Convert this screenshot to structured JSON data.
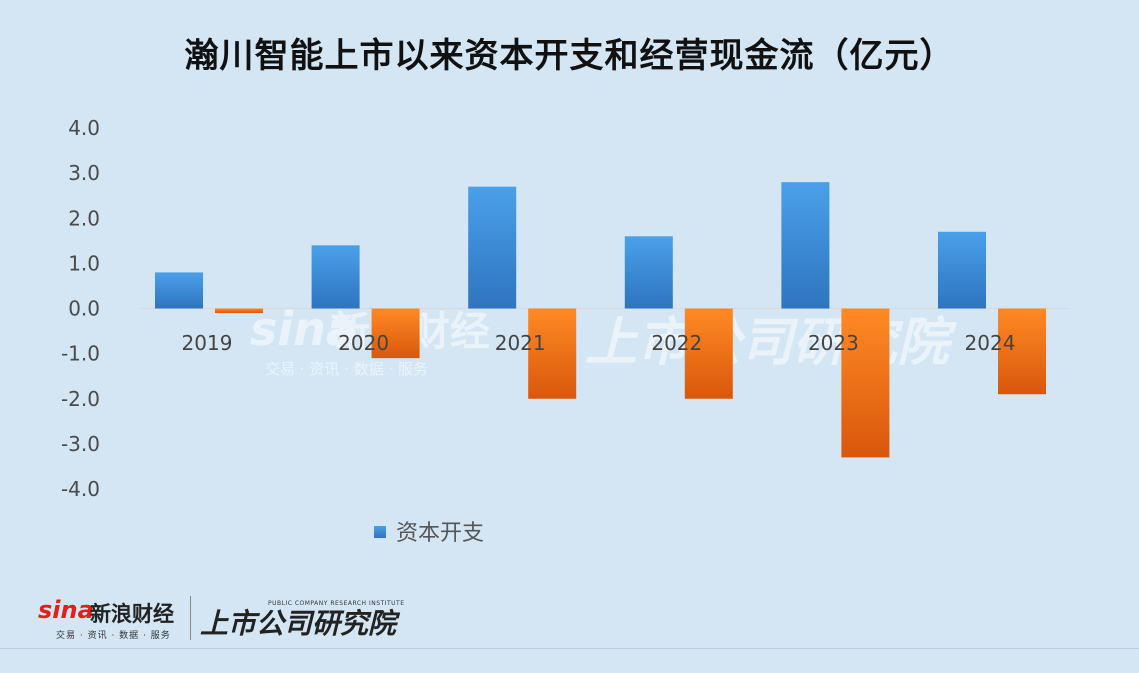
{
  "chart_data": {
    "type": "bar",
    "title": "瀚川智能上市以来资本开支和经营现金流（亿元）",
    "categories": [
      "2019",
      "2020",
      "2021",
      "2022",
      "2023",
      "2024"
    ],
    "series": [
      {
        "name": "资本开支",
        "values": [
          0.8,
          1.4,
          2.7,
          1.6,
          2.8,
          1.7
        ],
        "color": "#3d8ddb"
      },
      {
        "name": "",
        "values": [
          -0.1,
          -1.1,
          -2.0,
          -2.0,
          -3.3,
          -1.9
        ],
        "color": "#f0781e"
      }
    ],
    "ylim": [
      -4.0,
      4.0
    ],
    "yticks": [
      "4.0",
      "3.0",
      "2.0",
      "1.0",
      "0.0",
      "-1.0",
      "-2.0",
      "-3.0",
      "-4.0"
    ],
    "grid": false,
    "legend_position": "bottom-left"
  },
  "branding": {
    "sina_logo": "sina",
    "sina_cn": "新浪财经",
    "sina_tagline": "交易 · 资讯 · 数据 · 服务",
    "institute_cn": "上市公司研究院",
    "institute_en": "PUBLIC COMPANY RESEARCH INSTITUTE"
  }
}
